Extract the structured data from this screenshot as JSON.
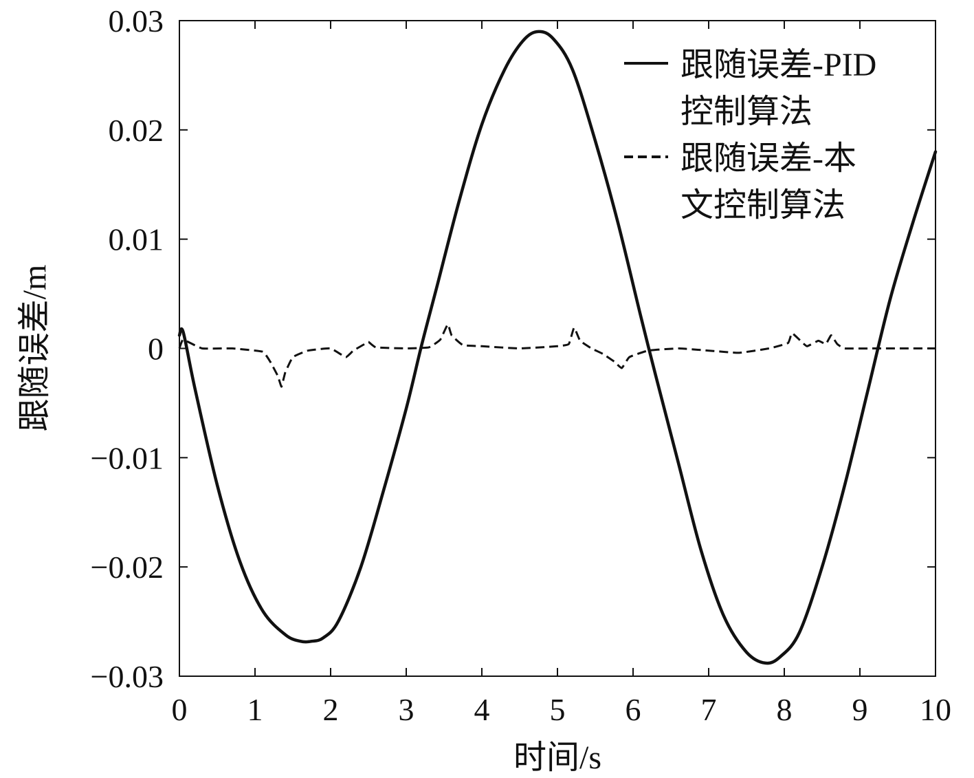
{
  "chart_data": {
    "type": "line",
    "xlabel": "时间/s",
    "ylabel": "跟随误差/m",
    "xlim": [
      0,
      10
    ],
    "ylim": [
      -0.03,
      0.03
    ],
    "x_ticks": [
      "0",
      "1",
      "2",
      "3",
      "4",
      "5",
      "6",
      "7",
      "8",
      "9",
      "10"
    ],
    "y_ticks": [
      "0.03",
      "0.02",
      "0.01",
      "0",
      "−0.01",
      "−0.02",
      "−0.03"
    ],
    "grid": false,
    "legend_position": "top-right",
    "series": [
      {
        "name": "跟随误差-PID控制算法",
        "legend_lines": [
          "跟随误差-PID",
          "控制算法"
        ],
        "style": "solid",
        "color": "#111111",
        "x": [
          0,
          0.05,
          0.2,
          0.5,
          0.8,
          1.1,
          1.4,
          1.6,
          1.75,
          1.9,
          2.1,
          2.4,
          2.7,
          3.0,
          3.2,
          3.4,
          3.7,
          4.0,
          4.3,
          4.55,
          4.75,
          4.95,
          5.2,
          5.5,
          5.8,
          6.1,
          6.3,
          6.6,
          6.9,
          7.2,
          7.5,
          7.75,
          7.95,
          8.2,
          8.5,
          8.8,
          9.1,
          9.4,
          9.7,
          10.0
        ],
        "y": [
          0.0012,
          0.0015,
          -0.0035,
          -0.0125,
          -0.0195,
          -0.024,
          -0.0262,
          -0.0268,
          -0.0268,
          -0.0265,
          -0.025,
          -0.02,
          -0.013,
          -0.0055,
          0.0002,
          0.0055,
          0.0135,
          0.0205,
          0.0255,
          0.0282,
          0.029,
          0.0283,
          0.0255,
          0.019,
          0.0115,
          0.003,
          -0.0025,
          -0.0105,
          -0.0185,
          -0.0245,
          -0.0278,
          -0.0288,
          -0.0282,
          -0.026,
          -0.02,
          -0.0125,
          -0.004,
          0.0045,
          0.0115,
          0.018
        ]
      },
      {
        "name": "跟随误差-本文控制算法",
        "legend_lines": [
          "跟随误差-本",
          "文控制算法"
        ],
        "style": "dashed",
        "color": "#111111",
        "x": [
          0,
          0.05,
          0.3,
          0.7,
          1.1,
          1.2,
          1.3,
          1.35,
          1.4,
          1.5,
          1.7,
          2.0,
          2.2,
          2.3,
          2.45,
          2.5,
          2.6,
          3.0,
          3.3,
          3.45,
          3.55,
          3.6,
          3.75,
          4.0,
          4.5,
          5.0,
          5.15,
          5.22,
          5.3,
          5.45,
          5.6,
          5.75,
          5.85,
          5.95,
          6.2,
          6.6,
          7.0,
          7.4,
          7.8,
          8.05,
          8.1,
          8.2,
          8.3,
          8.45,
          8.55,
          8.62,
          8.7,
          8.8,
          9.2,
          9.6,
          10.0
        ],
        "y": [
          0.0,
          0.0008,
          0.0,
          0.0,
          -0.0003,
          -0.0012,
          -0.0025,
          -0.0035,
          -0.0022,
          -0.0008,
          -0.0002,
          0.0,
          -0.0008,
          -0.0002,
          0.0004,
          0.0006,
          0.0001,
          0.0,
          0.0001,
          0.0008,
          0.0022,
          0.0012,
          0.0003,
          0.0002,
          0.0,
          0.0002,
          0.0004,
          0.0019,
          0.0007,
          0.0,
          -0.0005,
          -0.0012,
          -0.0018,
          -0.0008,
          -0.0002,
          0.0,
          -0.0002,
          -0.0004,
          0.0,
          0.0005,
          0.0014,
          0.0008,
          0.0002,
          0.0007,
          0.0004,
          0.0012,
          0.0004,
          0.0,
          0.0,
          0.0,
          0.0
        ]
      }
    ]
  }
}
